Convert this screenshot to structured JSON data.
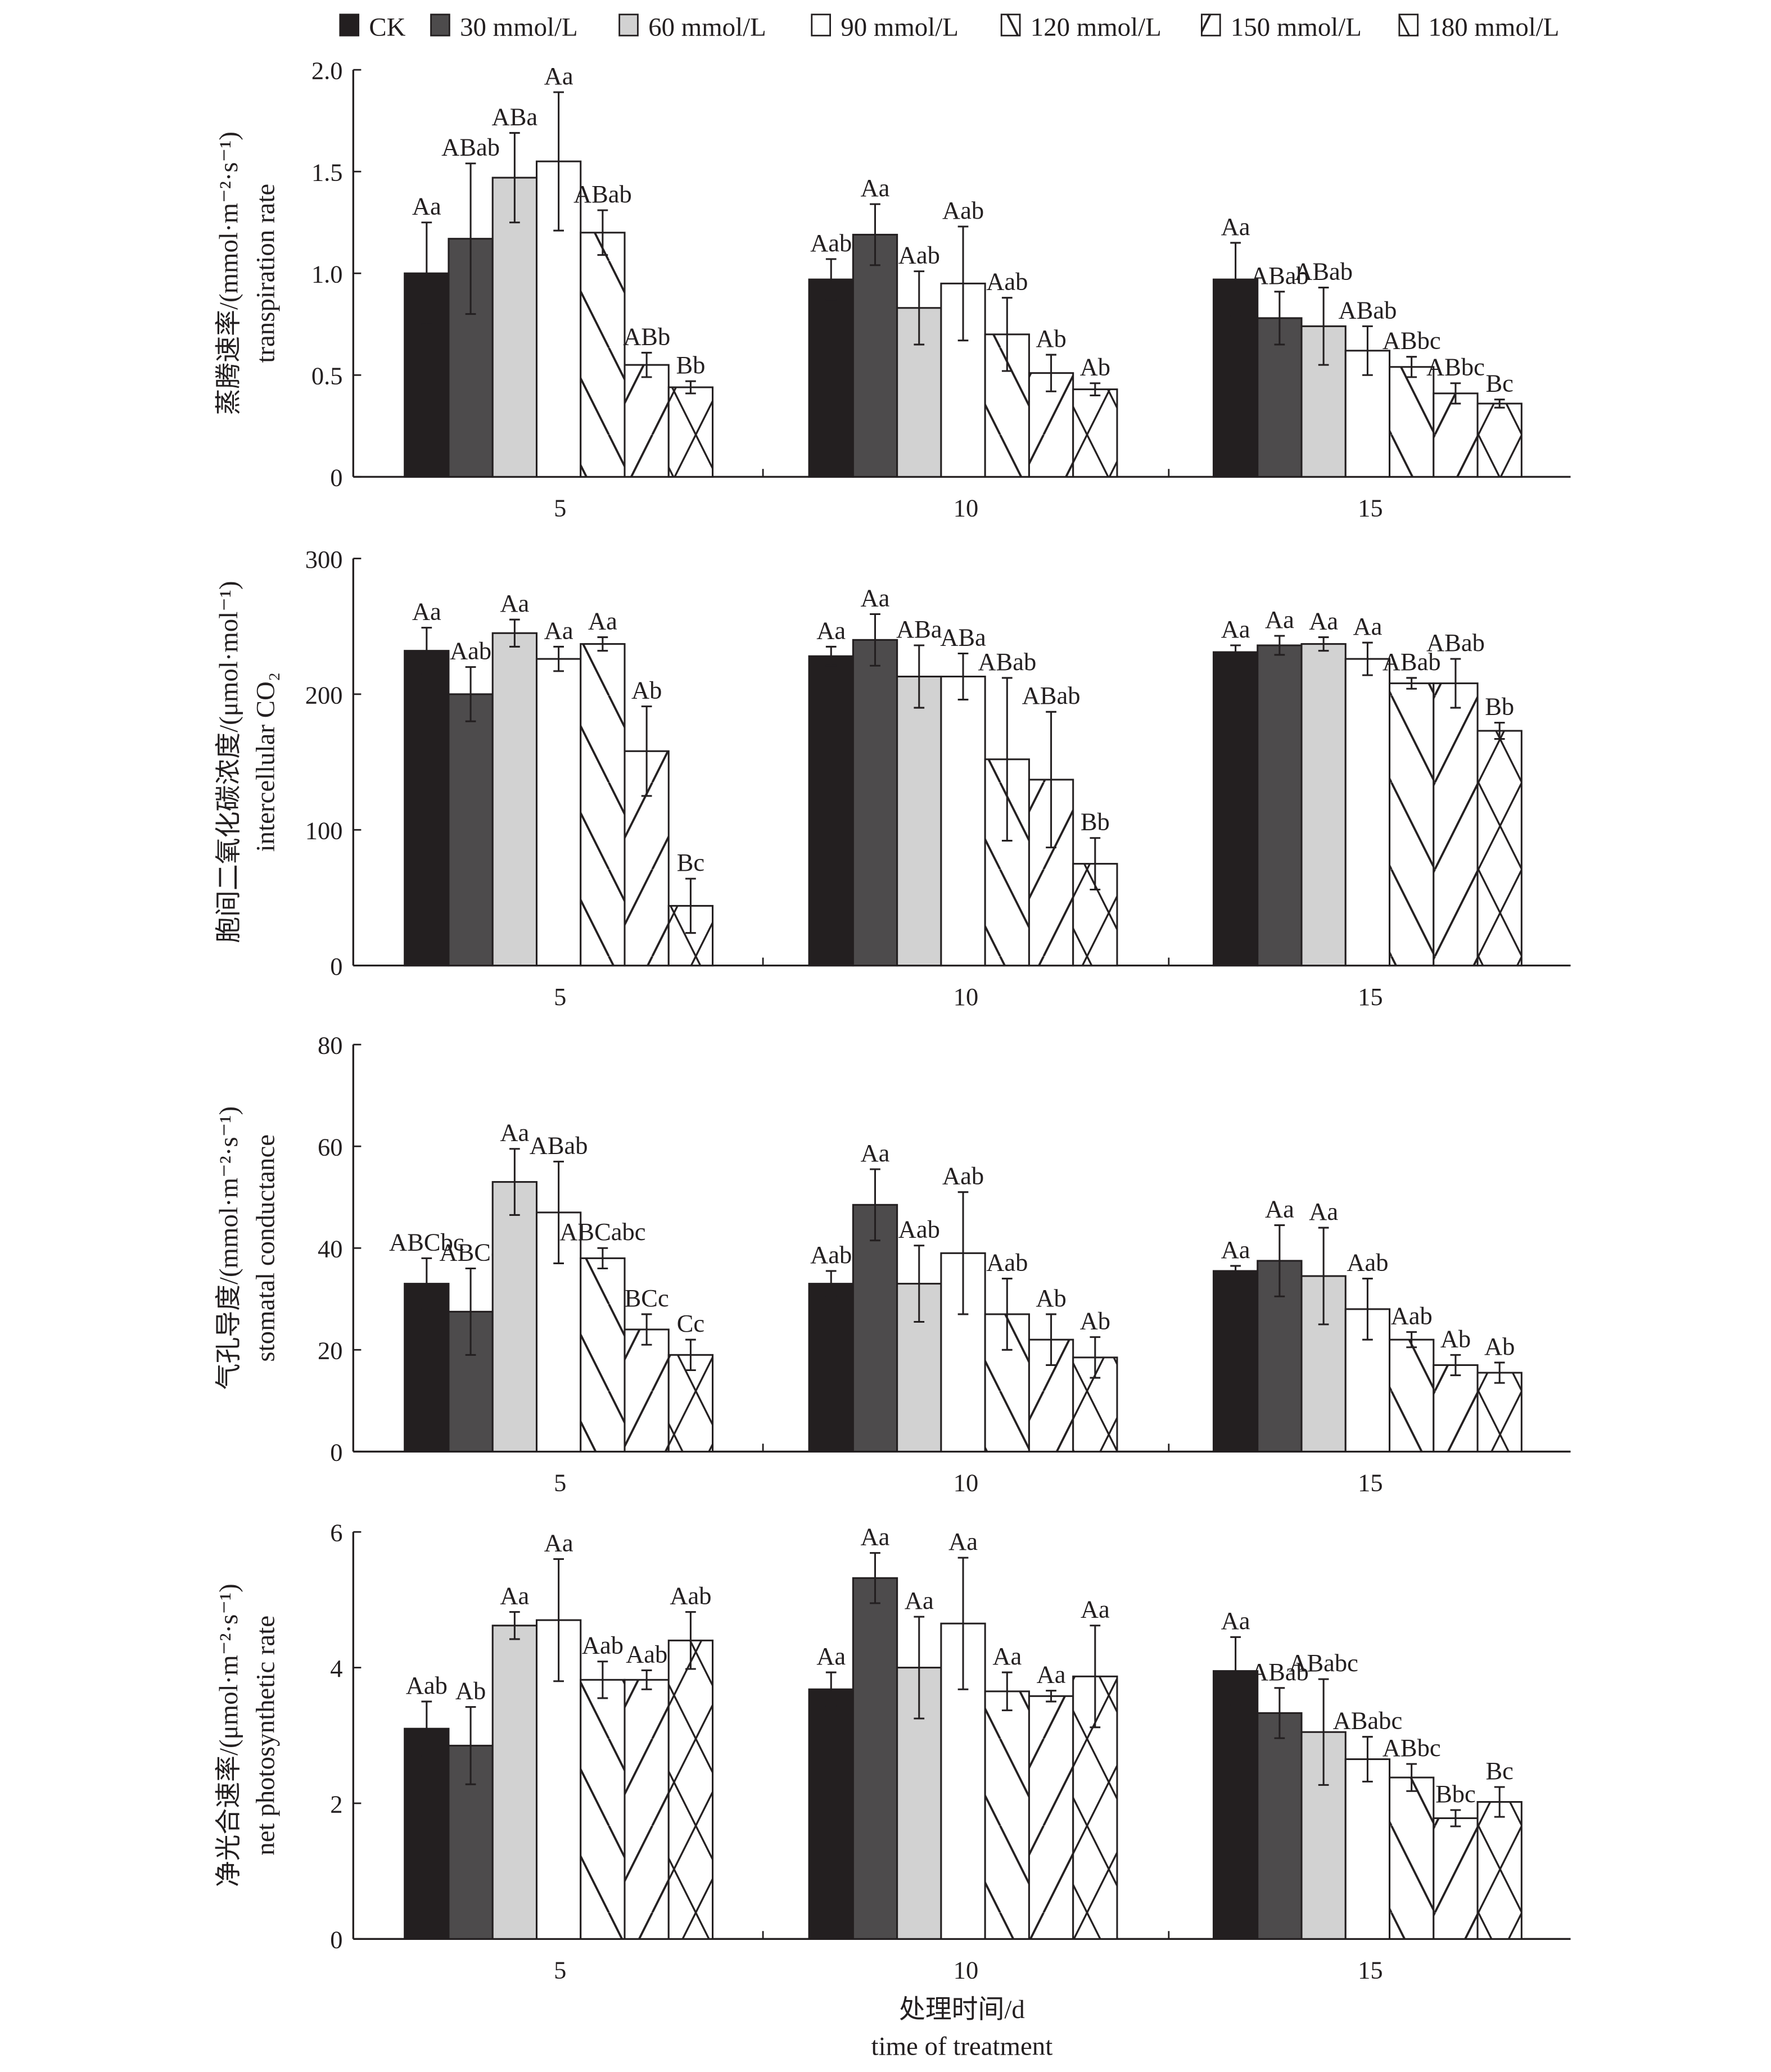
{
  "legend": {
    "position": "top",
    "items": [
      {
        "name": "CK",
        "fill": "#231f20",
        "pattern": "solid"
      },
      {
        "name": "30 mmol/L",
        "fill": "#4d4b4c",
        "pattern": "solid"
      },
      {
        "name": "60 mmol/L",
        "fill": "#d2d2d2",
        "pattern": "solid"
      },
      {
        "name": "90 mmol/L",
        "fill": "#ffffff",
        "pattern": "solid"
      },
      {
        "name": "120 mmol/L",
        "fill": "#ffffff",
        "pattern": "backslash"
      },
      {
        "name": "150 mmol/L",
        "fill": "#ffffff",
        "pattern": "slash"
      },
      {
        "name": "180 mmol/L",
        "fill": "#ffffff",
        "pattern": "cross"
      }
    ]
  },
  "xaxis": {
    "label_cn": "处理时间/d",
    "label_en": "time of treatment"
  },
  "chart_data": [
    {
      "type": "bar",
      "ylabel_cn": "蒸腾速率/(mmol·m⁻²·s⁻¹)",
      "ylabel_en": "transpiration rate",
      "ylim": [
        0,
        2.0
      ],
      "yticks": [
        "0",
        "0.5",
        "1.0",
        "1.5",
        "2.0"
      ],
      "categories": [
        "5",
        "10",
        "15"
      ],
      "series_values": [
        [
          [
            1.0,
            0.25,
            "Aa"
          ],
          [
            1.17,
            0.37,
            "ABab"
          ],
          [
            1.47,
            0.22,
            "ABa"
          ],
          [
            1.55,
            0.34,
            "Aa"
          ],
          [
            1.2,
            0.11,
            "ABab"
          ],
          [
            0.55,
            0.06,
            "ABb"
          ],
          [
            0.44,
            0.03,
            "Bb"
          ]
        ],
        [
          [
            0.97,
            0.1,
            "Aab"
          ],
          [
            1.19,
            0.15,
            "Aa"
          ],
          [
            0.83,
            0.18,
            "Aab"
          ],
          [
            0.95,
            0.28,
            "Aab"
          ],
          [
            0.7,
            0.18,
            "Aab"
          ],
          [
            0.51,
            0.09,
            "Ab"
          ],
          [
            0.43,
            0.03,
            "Ab"
          ]
        ],
        [
          [
            0.97,
            0.18,
            "Aa"
          ],
          [
            0.78,
            0.13,
            "ABab"
          ],
          [
            0.74,
            0.19,
            "ABab"
          ],
          [
            0.62,
            0.12,
            "ABab"
          ],
          [
            0.54,
            0.05,
            "ABbc"
          ],
          [
            0.41,
            0.05,
            "ABbc"
          ],
          [
            0.36,
            0.02,
            "Bc"
          ]
        ]
      ]
    },
    {
      "type": "bar",
      "ylabel_cn": "胞间二氧化碳浓度/(μmol·mol⁻¹)",
      "ylabel_en": "intercellular CO₂",
      "ylim": [
        0,
        300
      ],
      "yticks": [
        "0",
        "100",
        "200",
        "300"
      ],
      "categories": [
        "5",
        "10",
        "15"
      ],
      "series_values": [
        [
          [
            232,
            17,
            "Aa"
          ],
          [
            200,
            20,
            "Aab"
          ],
          [
            245,
            10,
            "Aa"
          ],
          [
            226,
            9,
            "Aa"
          ],
          [
            237,
            5,
            "Aa"
          ],
          [
            158,
            33,
            "Ab"
          ],
          [
            44,
            20,
            "Bc"
          ]
        ],
        [
          [
            228,
            7,
            "Aa"
          ],
          [
            240,
            19,
            "Aa"
          ],
          [
            213,
            23,
            "ABa"
          ],
          [
            213,
            17,
            "ABa"
          ],
          [
            152,
            60,
            "ABab"
          ],
          [
            137,
            50,
            "ABab"
          ],
          [
            75,
            19,
            "Bb"
          ]
        ],
        [
          [
            231,
            5,
            "Aa"
          ],
          [
            236,
            7,
            "Aa"
          ],
          [
            237,
            5,
            "Aa"
          ],
          [
            226,
            12,
            "Aa"
          ],
          [
            208,
            4,
            "ABab"
          ],
          [
            208,
            18,
            "ABab"
          ],
          [
            173,
            6,
            "Bb"
          ]
        ]
      ]
    },
    {
      "type": "bar",
      "ylabel_cn": "气孔导度/(mmol·m⁻²·s⁻¹)",
      "ylabel_en": "stomatal conductance",
      "ylim": [
        0,
        80
      ],
      "yticks": [
        "0",
        "20",
        "40",
        "60",
        "80"
      ],
      "categories": [
        "5",
        "10",
        "15"
      ],
      "series_values": [
        [
          [
            33,
            5,
            "ABCbc"
          ],
          [
            27.5,
            8.5,
            "ABCc"
          ],
          [
            53,
            6.5,
            "Aa"
          ],
          [
            47,
            10,
            "ABab"
          ],
          [
            38,
            2,
            "ABCabc"
          ],
          [
            24,
            3,
            "BCc"
          ],
          [
            19,
            3,
            "Cc"
          ]
        ],
        [
          [
            33,
            2.5,
            "Aab"
          ],
          [
            48.5,
            7,
            "Aa"
          ],
          [
            33,
            7.5,
            "Aab"
          ],
          [
            39,
            12,
            "Aab"
          ],
          [
            27,
            7,
            "Aab"
          ],
          [
            22,
            5,
            "Ab"
          ],
          [
            18.5,
            4,
            "Ab"
          ]
        ],
        [
          [
            35.5,
            1,
            "Aa"
          ],
          [
            37.5,
            7,
            "Aa"
          ],
          [
            34.5,
            9.5,
            "Aa"
          ],
          [
            28,
            6,
            "Aab"
          ],
          [
            22,
            1.5,
            "Aab"
          ],
          [
            17,
            2,
            "Ab"
          ],
          [
            15.5,
            2,
            "Ab"
          ]
        ]
      ]
    },
    {
      "type": "bar",
      "ylabel_cn": "净光合速率/(μmol·m⁻²·s⁻¹)",
      "ylabel_en": "net photosynthetic rate",
      "ylim": [
        0,
        6
      ],
      "yticks": [
        "0",
        "2",
        "4",
        "6"
      ],
      "categories": [
        "5",
        "10",
        "15"
      ],
      "series_values": [
        [
          [
            3.1,
            0.4,
            "Aab"
          ],
          [
            2.85,
            0.57,
            "Ab"
          ],
          [
            4.62,
            0.2,
            "Aa"
          ],
          [
            4.7,
            0.9,
            "Aa"
          ],
          [
            3.82,
            0.27,
            "Aab"
          ],
          [
            3.82,
            0.14,
            "Aab"
          ],
          [
            4.4,
            0.42,
            "Aab"
          ]
        ],
        [
          [
            3.68,
            0.25,
            "Aa"
          ],
          [
            5.32,
            0.37,
            "Aa"
          ],
          [
            4.0,
            0.75,
            "Aa"
          ],
          [
            4.65,
            0.97,
            "Aa"
          ],
          [
            3.65,
            0.28,
            "Aa"
          ],
          [
            3.58,
            0.08,
            "Aa"
          ],
          [
            3.87,
            0.75,
            "Aa"
          ]
        ],
        [
          [
            3.95,
            0.5,
            "Aa"
          ],
          [
            3.33,
            0.37,
            "ABab"
          ],
          [
            3.05,
            0.78,
            "ABabc"
          ],
          [
            2.65,
            0.33,
            "ABabc"
          ],
          [
            2.38,
            0.2,
            "ABbc"
          ],
          [
            1.78,
            0.12,
            "Bbc"
          ],
          [
            2.02,
            0.22,
            "Bc"
          ]
        ]
      ]
    }
  ]
}
